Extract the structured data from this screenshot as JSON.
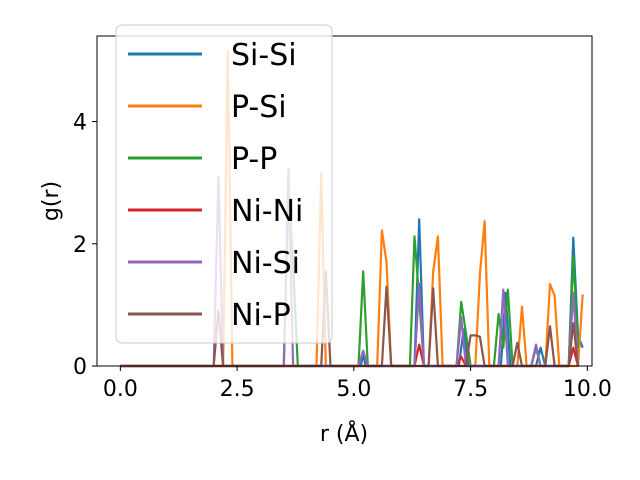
{
  "chart_data": {
    "type": "line",
    "xlabel": "r (Å)",
    "ylabel": "g(r)",
    "xlim": [
      -0.5,
      10.1
    ],
    "ylim": [
      0,
      5.4
    ],
    "xticks": [
      0.0,
      2.5,
      5.0,
      7.5,
      10.0
    ],
    "xtick_labels": [
      "0.0",
      "2.5",
      "5.0",
      "7.5",
      "10.0"
    ],
    "yticks": [
      0,
      2,
      4
    ],
    "ytick_labels": [
      "0",
      "2",
      "4"
    ],
    "grid": false,
    "legend_position": "top-left",
    "series": [
      {
        "name": "Si-Si",
        "color": "#1f77b4",
        "points": [
          [
            0,
            0
          ],
          [
            5.15,
            0
          ],
          [
            5.2,
            0.2
          ],
          [
            5.25,
            0
          ],
          [
            6.3,
            0
          ],
          [
            6.4,
            2.4
          ],
          [
            6.5,
            0
          ],
          [
            7.25,
            0
          ],
          [
            7.35,
            0.6
          ],
          [
            7.45,
            0
          ],
          [
            8.15,
            0
          ],
          [
            8.25,
            1.2
          ],
          [
            8.35,
            0
          ],
          [
            8.9,
            0
          ],
          [
            9.0,
            0.3
          ],
          [
            9.1,
            0
          ],
          [
            9.6,
            0
          ],
          [
            9.7,
            2.1
          ],
          [
            9.8,
            0.5
          ],
          [
            9.9,
            0.3
          ]
        ]
      },
      {
        "name": "P-Si",
        "color": "#ff7f0e",
        "points": [
          [
            0,
            0
          ],
          [
            2.2,
            0
          ],
          [
            2.3,
            5.15
          ],
          [
            2.4,
            0
          ],
          [
            4.2,
            0
          ],
          [
            4.3,
            3.15
          ],
          [
            4.4,
            0
          ],
          [
            5.5,
            0
          ],
          [
            5.6,
            2.22
          ],
          [
            5.7,
            1.7
          ],
          [
            5.8,
            0
          ],
          [
            6.6,
            0
          ],
          [
            6.7,
            1.55
          ],
          [
            6.8,
            2.12
          ],
          [
            6.9,
            0
          ],
          [
            7.6,
            0
          ],
          [
            7.7,
            1.5
          ],
          [
            7.8,
            2.37
          ],
          [
            7.9,
            0
          ],
          [
            8.5,
            0
          ],
          [
            8.6,
            0.97
          ],
          [
            8.7,
            0
          ],
          [
            9.1,
            0
          ],
          [
            9.2,
            1.34
          ],
          [
            9.3,
            1.15
          ],
          [
            9.4,
            0
          ],
          [
            9.8,
            0
          ],
          [
            9.9,
            1.17
          ]
        ]
      },
      {
        "name": "P-P",
        "color": "#2ca02c",
        "points": [
          [
            0,
            0
          ],
          [
            3.5,
            0
          ],
          [
            3.6,
            2.9
          ],
          [
            3.7,
            1.65
          ],
          [
            3.8,
            0
          ],
          [
            5.1,
            0
          ],
          [
            5.2,
            1.55
          ],
          [
            5.3,
            0
          ],
          [
            6.2,
            0
          ],
          [
            6.3,
            2.12
          ],
          [
            6.4,
            1.1
          ],
          [
            6.5,
            0
          ],
          [
            7.2,
            0
          ],
          [
            7.3,
            1.05
          ],
          [
            7.4,
            0.55
          ],
          [
            7.5,
            0
          ],
          [
            8.0,
            0
          ],
          [
            8.1,
            0.85
          ],
          [
            8.2,
            0.3
          ],
          [
            8.3,
            1.25
          ],
          [
            8.4,
            0
          ],
          [
            8.8,
            0
          ],
          [
            8.9,
            0.3
          ],
          [
            9.0,
            0
          ],
          [
            9.6,
            0
          ],
          [
            9.7,
            1.8
          ],
          [
            9.8,
            0.3
          ]
        ]
      },
      {
        "name": "Ni-Ni",
        "color": "#d62728",
        "points": [
          [
            0,
            0
          ],
          [
            6.3,
            0
          ],
          [
            6.4,
            0.35
          ],
          [
            6.5,
            0
          ],
          [
            7.2,
            0
          ],
          [
            7.3,
            0.15
          ],
          [
            7.4,
            0
          ],
          [
            9.6,
            0
          ],
          [
            9.7,
            0.3
          ],
          [
            9.8,
            0
          ]
        ]
      },
      {
        "name": "Ni-Si",
        "color": "#9467bd",
        "points": [
          [
            0,
            0
          ],
          [
            2.0,
            0
          ],
          [
            2.1,
            3.1
          ],
          [
            2.2,
            0
          ],
          [
            3.5,
            0
          ],
          [
            3.6,
            3.22
          ],
          [
            3.7,
            0
          ],
          [
            5.1,
            0
          ],
          [
            5.2,
            0.25
          ],
          [
            5.3,
            0
          ],
          [
            6.3,
            0
          ],
          [
            6.4,
            1.35
          ],
          [
            6.5,
            0
          ],
          [
            7.2,
            0
          ],
          [
            7.3,
            0.8
          ],
          [
            7.4,
            0
          ],
          [
            8.1,
            0
          ],
          [
            8.2,
            1.25
          ],
          [
            8.3,
            0
          ],
          [
            8.8,
            0
          ],
          [
            8.9,
            0.35
          ],
          [
            9.0,
            0
          ],
          [
            9.6,
            0
          ],
          [
            9.7,
            1.2
          ],
          [
            9.8,
            0
          ]
        ]
      },
      {
        "name": "Ni-P",
        "color": "#8c564b",
        "points": [
          [
            0,
            0
          ],
          [
            2.0,
            0
          ],
          [
            2.1,
            0.9
          ],
          [
            2.2,
            0
          ],
          [
            4.3,
            0
          ],
          [
            4.4,
            1.55
          ],
          [
            4.5,
            0
          ],
          [
            5.6,
            0
          ],
          [
            5.7,
            1.3
          ],
          [
            5.8,
            0
          ],
          [
            6.6,
            0
          ],
          [
            6.7,
            1.27
          ],
          [
            6.8,
            0
          ],
          [
            7.4,
            0
          ],
          [
            7.5,
            0.5
          ],
          [
            7.6,
            0.5
          ],
          [
            7.7,
            0.48
          ],
          [
            7.8,
            0
          ],
          [
            8.4,
            0
          ],
          [
            8.5,
            0.38
          ],
          [
            8.6,
            0
          ],
          [
            9.1,
            0
          ],
          [
            9.2,
            0.65
          ],
          [
            9.3,
            0
          ],
          [
            9.6,
            0
          ],
          [
            9.7,
            0.7
          ],
          [
            9.8,
            0
          ]
        ]
      }
    ]
  }
}
